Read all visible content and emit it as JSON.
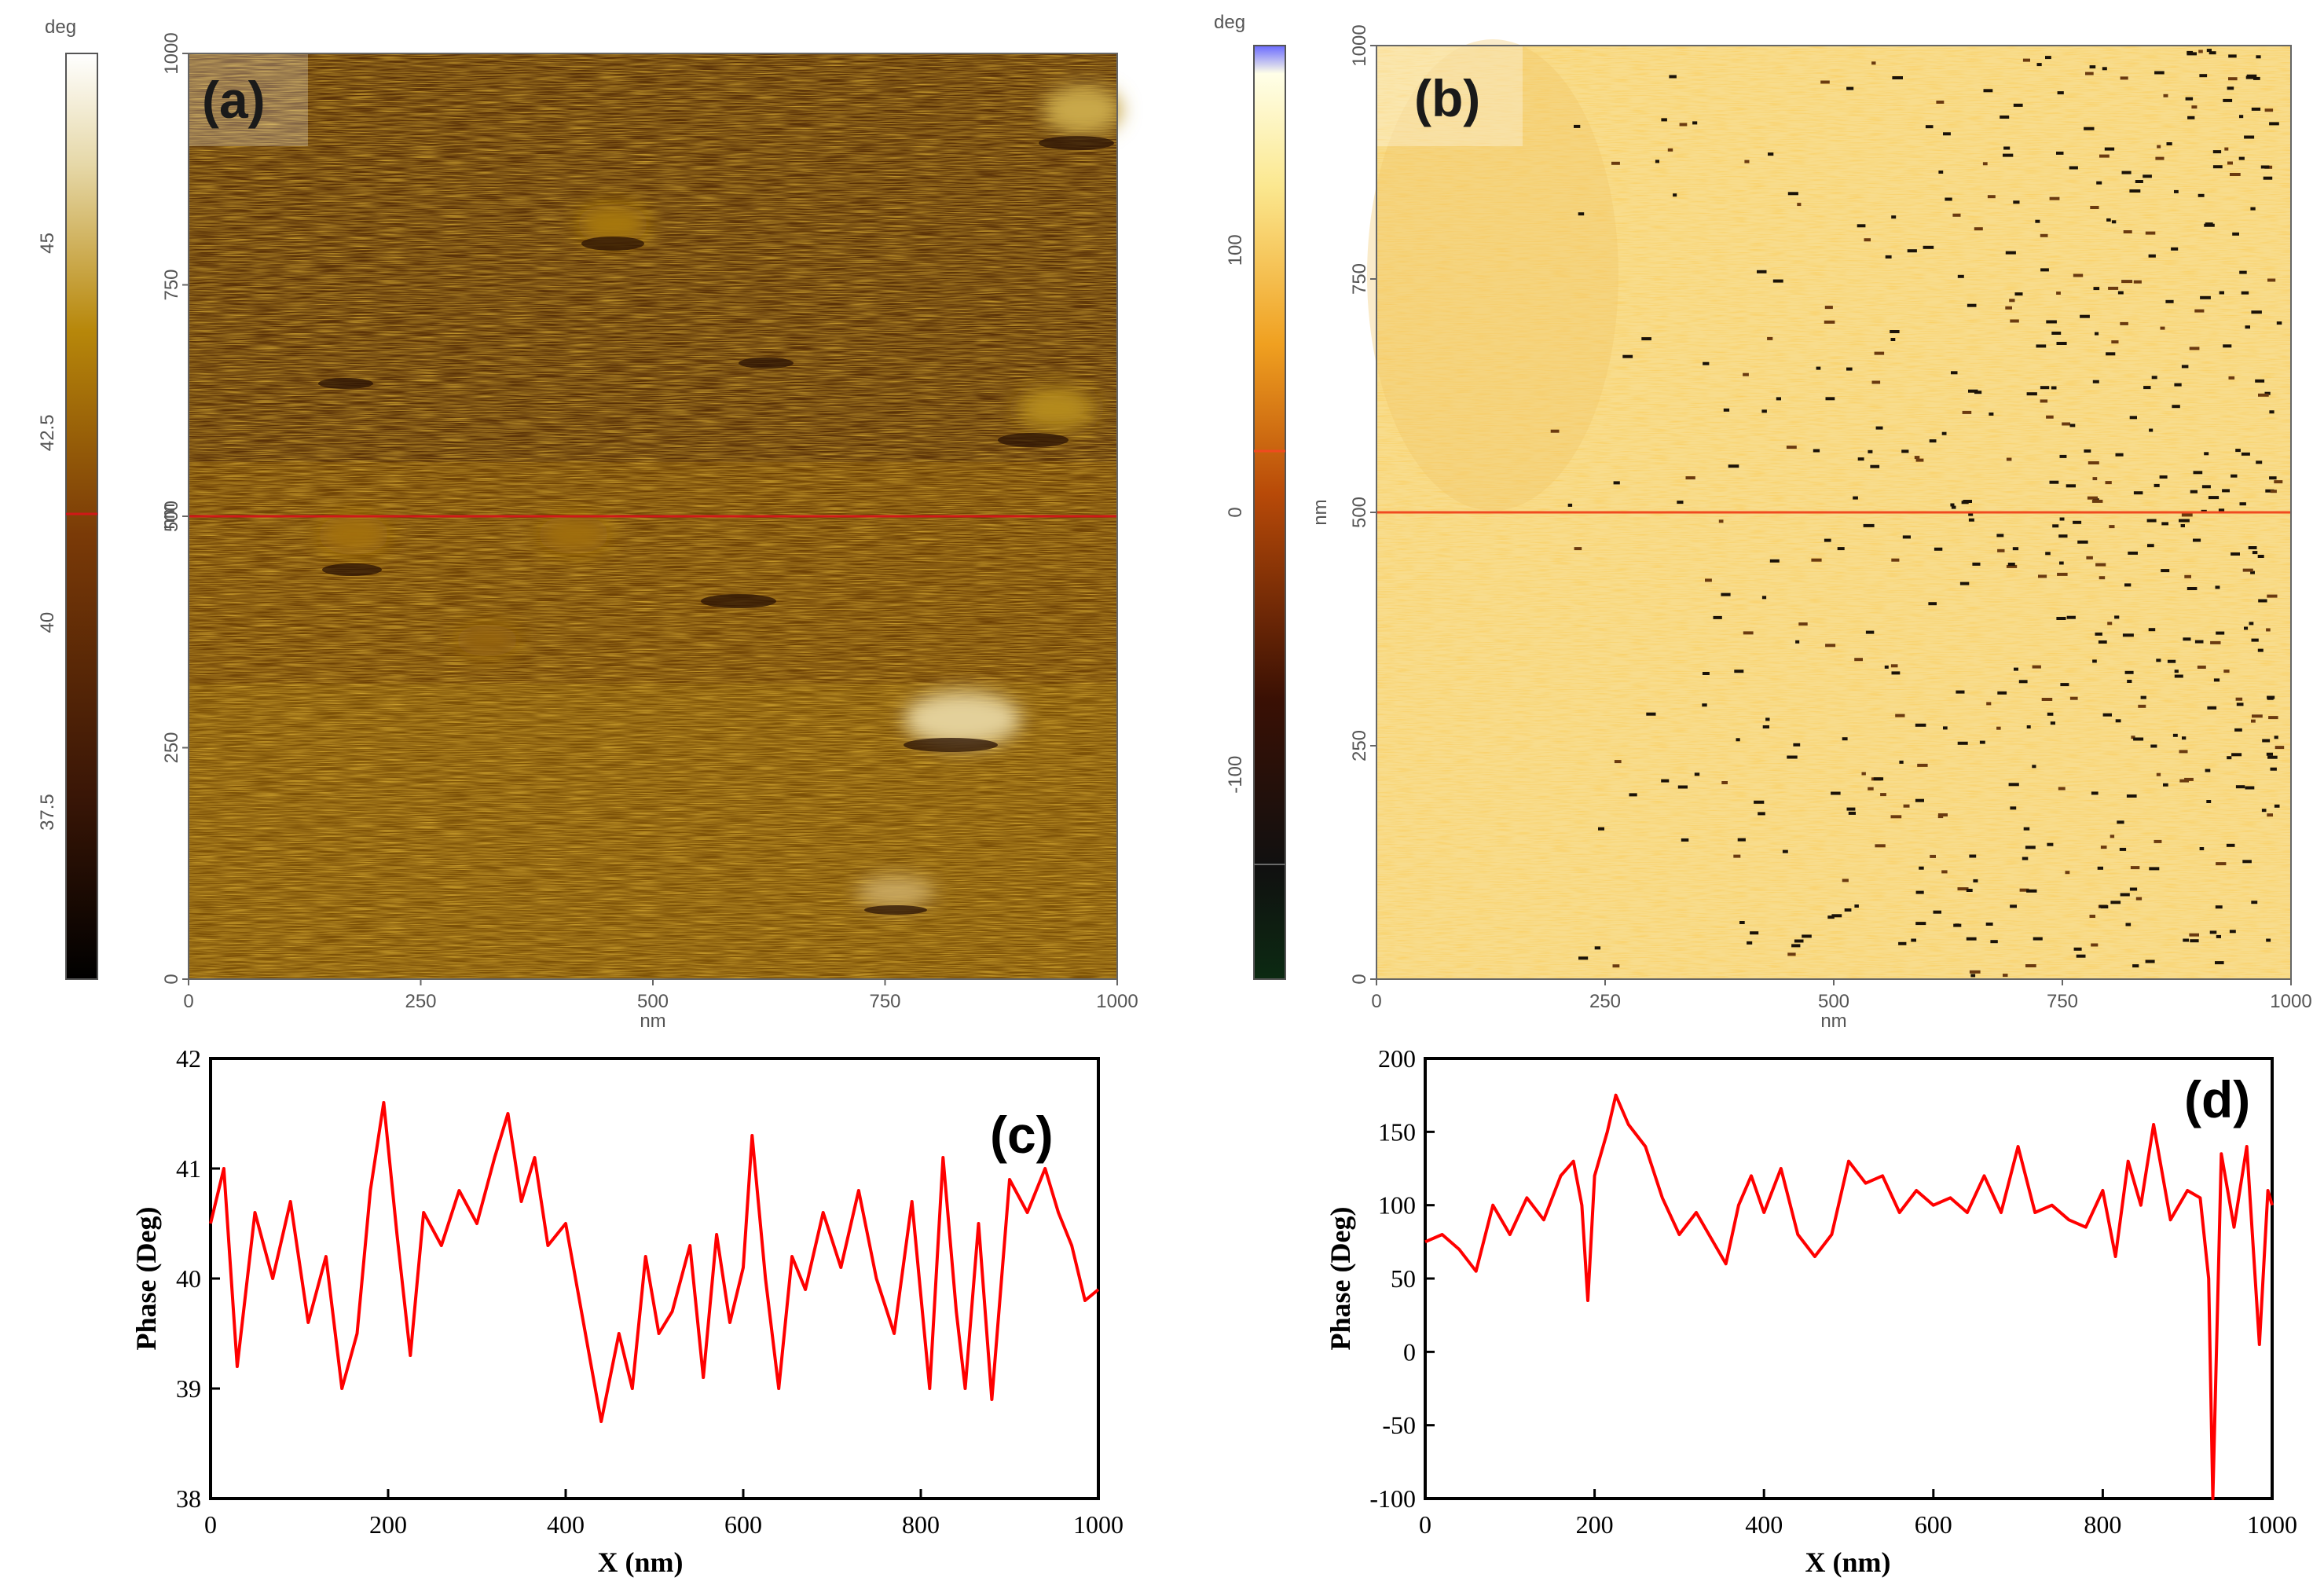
{
  "panels": {
    "a": {
      "label": "(a)",
      "colorbar": {
        "unit": "deg",
        "ticks": [
          "45",
          "42.5",
          "40",
          "37.5"
        ],
        "tick_values": [
          45,
          42.5,
          40,
          37.5
        ],
        "range": [
          35.3,
          47.5
        ]
      },
      "x_ticks": [
        "0",
        "250",
        "500",
        "750",
        "1000"
      ],
      "y_ticks": [
        "1000",
        "750",
        "500",
        "250",
        "0"
      ],
      "x_unit": "nm",
      "y_unit": "nm",
      "line_position_nm": 500
    },
    "b": {
      "label": "(b)",
      "colorbar": {
        "unit": "deg",
        "ticks": [
          "100",
          "0",
          "-100"
        ],
        "tick_values": [
          100,
          0,
          -100
        ],
        "range": [
          -178,
          178
        ]
      },
      "x_ticks": [
        "0",
        "250",
        "500",
        "750",
        "1000"
      ],
      "y_ticks": [
        "1000",
        "750",
        "500",
        "250",
        "0"
      ],
      "x_unit": "nm",
      "y_unit": "nm",
      "line_position_nm": 500
    }
  },
  "colors": {
    "profile_line": "#ff0000",
    "scan_line_a": "#d01818",
    "scan_line_b": "#f04a20"
  },
  "chart_data": [
    {
      "panel": "(c)",
      "type": "line",
      "xlabel": "X (nm)",
      "ylabel": "Phase (Deg)",
      "xlim": [
        0,
        1000
      ],
      "ylim": [
        38,
        42
      ],
      "xticks": [
        "0",
        "200",
        "400",
        "600",
        "800",
        "1000"
      ],
      "yticks": [
        "42",
        "41",
        "40",
        "39",
        "38"
      ],
      "x": [
        0,
        15,
        30,
        50,
        70,
        90,
        110,
        130,
        148,
        165,
        180,
        195,
        210,
        225,
        240,
        260,
        280,
        300,
        320,
        335,
        350,
        365,
        380,
        400,
        420,
        440,
        460,
        475,
        490,
        505,
        520,
        540,
        555,
        570,
        585,
        600,
        610,
        625,
        640,
        655,
        670,
        690,
        710,
        730,
        750,
        770,
        790,
        810,
        825,
        840,
        850,
        865,
        880,
        900,
        920,
        940,
        955,
        970,
        985,
        1000
      ],
      "y": [
        40.5,
        41.0,
        39.2,
        40.6,
        40.0,
        40.7,
        39.6,
        40.2,
        39.0,
        39.5,
        40.8,
        41.6,
        40.4,
        39.3,
        40.6,
        40.3,
        40.8,
        40.5,
        41.1,
        41.5,
        40.7,
        41.1,
        40.3,
        40.5,
        39.6,
        38.7,
        39.5,
        39.0,
        40.2,
        39.5,
        39.7,
        40.3,
        39.1,
        40.4,
        39.6,
        40.1,
        41.3,
        40.0,
        39.0,
        40.2,
        39.9,
        40.6,
        40.1,
        40.8,
        40.0,
        39.5,
        40.7,
        39.0,
        41.1,
        39.7,
        39.0,
        40.5,
        38.9,
        40.9,
        40.6,
        41.0,
        40.6,
        40.3,
        39.8,
        39.9
      ],
      "series": [
        {
          "values_ref": "y"
        }
      ]
    },
    {
      "panel": "(d)",
      "type": "line",
      "xlabel": "X (nm)",
      "ylabel": "Phase (Deg)",
      "xlim": [
        0,
        1000
      ],
      "ylim": [
        -100,
        200
      ],
      "xticks": [
        "0",
        "200",
        "400",
        "600",
        "800",
        "1000"
      ],
      "yticks": [
        "200",
        "150",
        "100",
        "50",
        "0",
        "-50",
        "-100"
      ],
      "x": [
        0,
        20,
        40,
        60,
        80,
        100,
        120,
        140,
        160,
        175,
        185,
        192,
        200,
        215,
        225,
        240,
        260,
        280,
        300,
        320,
        340,
        355,
        370,
        385,
        400,
        420,
        440,
        460,
        480,
        500,
        520,
        540,
        560,
        580,
        600,
        620,
        640,
        660,
        680,
        700,
        720,
        740,
        760,
        780,
        800,
        815,
        830,
        845,
        860,
        880,
        900,
        915,
        925,
        930,
        940,
        955,
        970,
        985,
        995,
        1000
      ],
      "y": [
        75,
        80,
        70,
        55,
        100,
        80,
        105,
        90,
        120,
        130,
        100,
        35,
        120,
        150,
        175,
        155,
        140,
        105,
        80,
        95,
        75,
        60,
        100,
        120,
        95,
        125,
        80,
        65,
        80,
        130,
        115,
        120,
        95,
        110,
        100,
        105,
        95,
        120,
        95,
        140,
        95,
        100,
        90,
        85,
        110,
        65,
        130,
        100,
        155,
        90,
        110,
        105,
        50,
        -100,
        135,
        85,
        140,
        5,
        110,
        100
      ],
      "series": [
        {
          "values_ref": "y"
        }
      ]
    }
  ]
}
